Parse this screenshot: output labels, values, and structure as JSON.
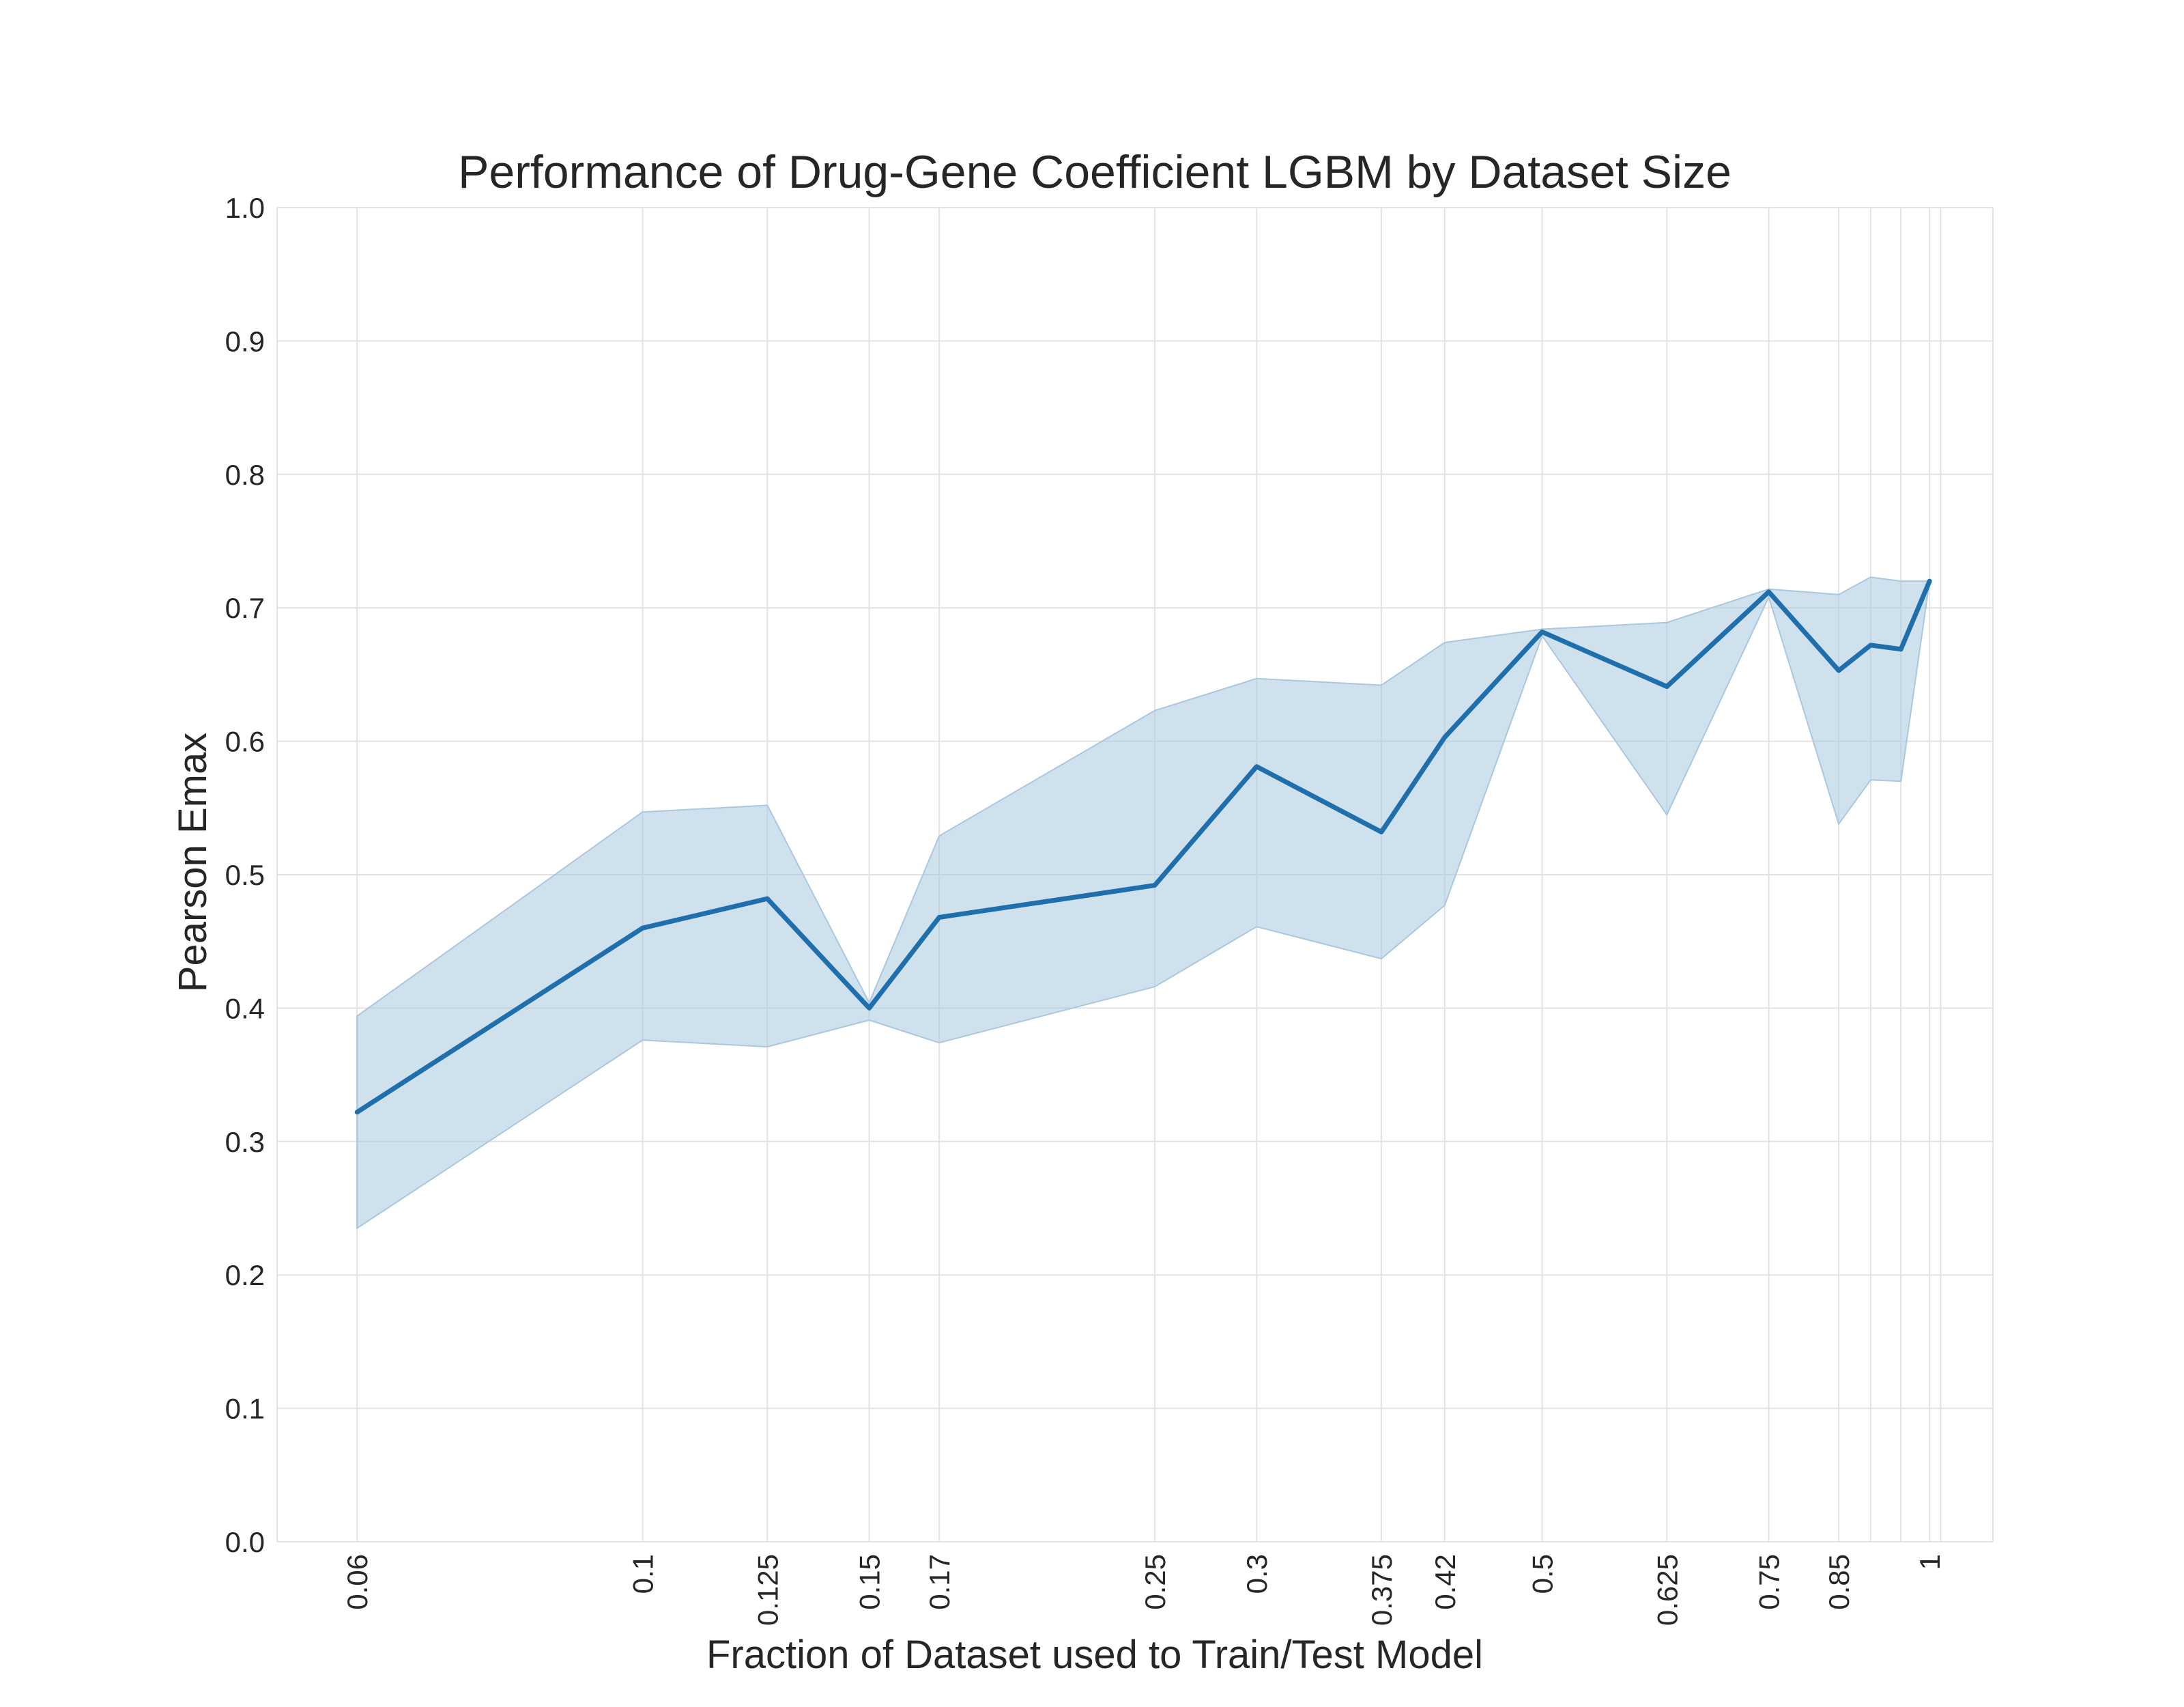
{
  "chart_data": {
    "type": "line",
    "title": "Performance of Drug-Gene Coefficient LGBM by Dataset Size",
    "xlabel": "Fraction of Dataset used to Train/Test Model",
    "ylabel": "Pearson Emax",
    "x_scale": "log",
    "xlim": [
      0.052,
      1.12
    ],
    "ylim": [
      0.0,
      1.0
    ],
    "x_ticks": [
      0.06,
      0.1,
      0.125,
      0.15,
      0.17,
      0.25,
      0.3,
      0.375,
      0.42,
      0.5,
      0.625,
      0.75,
      0.85,
      1
    ],
    "x_tick_labels": [
      "0.06",
      "0.1",
      "0.125",
      "0.15",
      "0.17",
      "0.25",
      "0.3",
      "0.375",
      "0.42",
      "0.5",
      "0.625",
      "0.75",
      "0.85",
      "1"
    ],
    "extra_vgrid_x": [
      0.9,
      0.95,
      1.02
    ],
    "y_ticks": [
      0.0,
      0.1,
      0.2,
      0.3,
      0.4,
      0.5,
      0.6,
      0.7,
      0.8,
      0.9,
      1.0
    ],
    "y_tick_labels": [
      "0.0",
      "0.1",
      "0.2",
      "0.3",
      "0.4",
      "0.5",
      "0.6",
      "0.7",
      "0.8",
      "0.9",
      "1.0"
    ],
    "grid": true,
    "series": [
      {
        "color": "#1f6fad",
        "band_color": "#a9c8e0",
        "x": [
          0.06,
          0.1,
          0.125,
          0.15,
          0.17,
          0.25,
          0.3,
          0.375,
          0.42,
          0.5,
          0.625,
          0.75,
          0.85,
          0.9,
          0.95,
          1.0
        ],
        "y": [
          0.322,
          0.46,
          0.482,
          0.4,
          0.468,
          0.492,
          0.581,
          0.532,
          0.603,
          0.682,
          0.641,
          0.712,
          0.653,
          0.672,
          0.669,
          0.72
        ],
        "lower": [
          0.235,
          0.376,
          0.371,
          0.391,
          0.374,
          0.416,
          0.461,
          0.437,
          0.477,
          0.679,
          0.545,
          0.708,
          0.538,
          0.571,
          0.57,
          0.72
        ],
        "upper": [
          0.394,
          0.547,
          0.552,
          0.404,
          0.529,
          0.623,
          0.647,
          0.642,
          0.674,
          0.684,
          0.689,
          0.714,
          0.71,
          0.723,
          0.72,
          0.72
        ]
      }
    ]
  }
}
